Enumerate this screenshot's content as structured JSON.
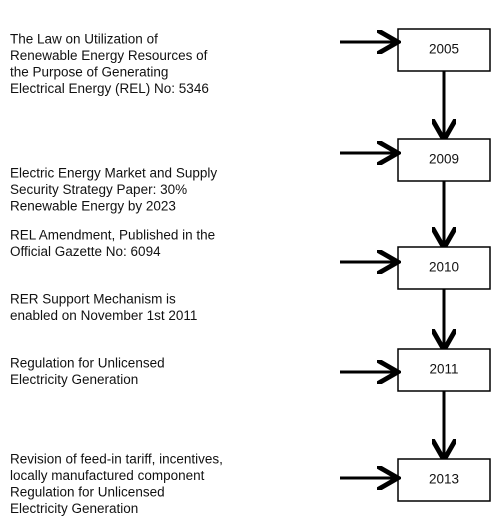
{
  "years": [
    "2005",
    "2009",
    "2010",
    "2011",
    "2013"
  ],
  "notes": [
    {
      "lines": [
        "The Law on Utilization of",
        "Renewable Energy Resources of",
        "the Purpose of Generating",
        "Electrical Energy (REL) No: 5346"
      ]
    },
    {
      "lines": [
        "Electric Energy Market and Supply",
        "Security Strategy Paper: 30%",
        "Renewable Energy by 2023"
      ]
    },
    {
      "lines": [
        "REL Amendment, Published in the",
        "Official Gazette No: 6094"
      ]
    },
    {
      "lines": [
        "RER Support Mechanism is",
        "enabled on November 1st 2011"
      ]
    },
    {
      "lines": [
        "Regulation for Unlicensed",
        "Electricity Generation"
      ]
    },
    {
      "lines": [
        "Revision of feed-in tariff, incentives,",
        "locally manufactured component",
        "Regulation for Unlicensed",
        "Electricity Generation"
      ]
    }
  ]
}
